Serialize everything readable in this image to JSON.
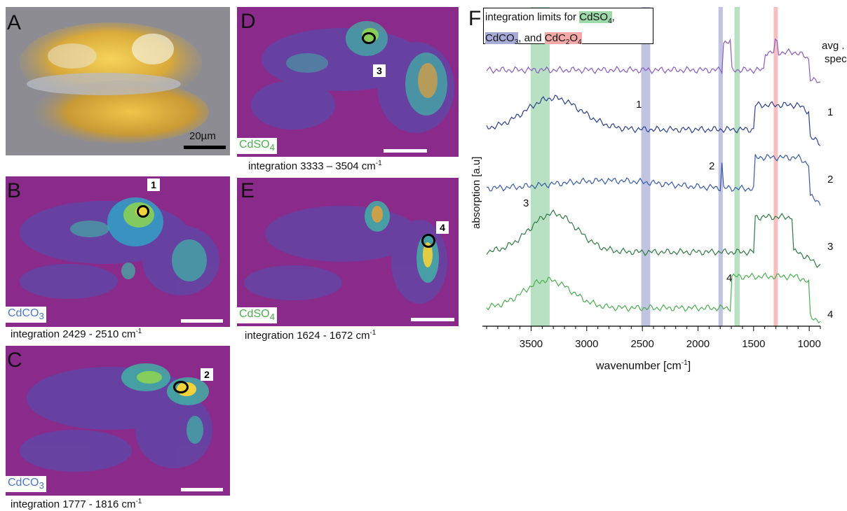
{
  "panels": {
    "A": {
      "label": "A",
      "scale": "20µm"
    },
    "B": {
      "label": "B",
      "compound_main": "CdCO",
      "compound_sub": "3",
      "caption_main": "integration 2429 - 2510 cm",
      "caption_sup": "-1",
      "spot": "1"
    },
    "C": {
      "label": "C",
      "compound_main": "CdCO",
      "compound_sub": "3",
      "caption_main": "integration 1777 - 1816 cm",
      "caption_sup": "-1",
      "spot": "2"
    },
    "D": {
      "label": "D",
      "compound_main": "CdSO",
      "compound_sub": "4",
      "caption_main": "integration 3333 – 3504 cm",
      "caption_sup": "-1",
      "spot": "3"
    },
    "E": {
      "label": "E",
      "compound_main": "CdSO",
      "compound_sub": "4",
      "caption_main": "integration 1624 - 1672 cm",
      "caption_sup": "-1",
      "spot": "4"
    }
  },
  "spectrum": {
    "label": "F",
    "legend": {
      "prefix": "integration limits for",
      "cdso4": "CdSO",
      "cdso4_sub": "4",
      "cdco3": "CdCO",
      "cdco3_sub": "3",
      "and": ", and",
      "cdc2o4_a": "CdC",
      "cdc2o4_sub1": "2",
      "cdc2o4_b": "O",
      "cdc2o4_sub2": "4"
    },
    "ylabel": "absorption [a.u]",
    "xlabel_main": "wavenumber [cm",
    "xlabel_sup": "-1",
    "xlabel_end": "]",
    "band_colors": {
      "CdSO4": "#7cc98f",
      "CdCO3": "#8e93c9",
      "CdC2O4": "#f08a8a"
    },
    "trace_labels": [
      "avg .",
      "spec.",
      "1",
      "2",
      "3",
      "4"
    ],
    "band_numbers": [
      "1",
      "2",
      "3",
      "4"
    ]
  },
  "chart_data": {
    "type": "line",
    "xlabel": "wavenumber [cm-1]",
    "ylabel": "absorption [a.u]",
    "xlim": [
      3900,
      900
    ],
    "x_reversed": true,
    "xticks": [
      3500,
      3000,
      2500,
      2000,
      1500,
      1000
    ],
    "integration_bands": [
      {
        "compound": "CdSO4",
        "range": [
          3504,
          3333
        ]
      },
      {
        "compound": "CdCO3",
        "range": [
          2510,
          2429
        ]
      },
      {
        "compound": "CdCO3",
        "range": [
          1816,
          1777
        ]
      },
      {
        "compound": "CdSO4",
        "range": [
          1672,
          1624
        ]
      },
      {
        "compound": "CdC2O4",
        "range": [
          1320,
          1290
        ]
      }
    ],
    "series": [
      {
        "name": "avg . spec.",
        "color": "#8a5cc0"
      },
      {
        "name": "1",
        "color": "#2c3f8f"
      },
      {
        "name": "2",
        "color": "#3a5aa8"
      },
      {
        "name": "3",
        "color": "#2f7a45"
      },
      {
        "name": "4",
        "color": "#4caf50"
      }
    ]
  }
}
